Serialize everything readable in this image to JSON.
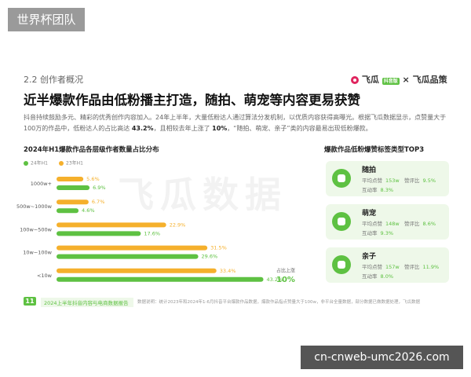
{
  "watermark": "世界杯团队",
  "section": "2.2 创作者概况",
  "logo": {
    "brand": "飞瓜",
    "badge": "抖音版",
    "partner": "× 飞瓜品策"
  },
  "title": "近半爆款作品由低粉播主打造，随拍、萌宠等内容更易获赞",
  "paragraph": [
    "抖音持续鼓励多元、精彩的优秀创作内容加入。24年上半年，大量低粉达人通过算法分发机制，以优质内容获得高曝光。根据飞瓜数据显示，点赞量大于100万的作品中，低粉达人的占比高达 ",
    "43.2%",
    "，且相较去年上涨了 ",
    "10%",
    "，“随拍、萌宠、亲子”类的内容最易出现低粉爆款。"
  ],
  "bg_watermark": "飞瓜数据",
  "chart_data": {
    "type": "bar",
    "orientation": "horizontal",
    "title": "2024年H1爆款作品各层级作者数量占比分布",
    "categories": [
      "1000w+",
      "500w~1000w",
      "100w~500w",
      "10w~100w",
      "<10w"
    ],
    "series": [
      {
        "name": "24年H1",
        "color": "#5ec142",
        "values": [
          6.9,
          4.6,
          17.6,
          29.6,
          43.2
        ],
        "value_labels": [
          "6.9%",
          "4.6%",
          "17.6%",
          "29.6%",
          "43.2%"
        ]
      },
      {
        "name": "23年H1",
        "color": "#f5b02c",
        "values": [
          5.6,
          6.7,
          22.9,
          31.5,
          33.4
        ],
        "value_labels": [
          "5.6%",
          "6.7%",
          "22.9%",
          "31.5%",
          "33.4%"
        ]
      }
    ],
    "annotation": {
      "text": "占比上涨",
      "value": "10%"
    }
  },
  "top3": {
    "title": "爆款作品低粉爆赞标签类型TOP3",
    "cards": [
      {
        "label": "随拍",
        "metrics": [
          {
            "name": "平均点赞",
            "value": "153w"
          },
          {
            "name": "赞评比",
            "value": "9.5%"
          },
          {
            "name": "互动率",
            "value": "8.3%"
          }
        ]
      },
      {
        "label": "萌宠",
        "metrics": [
          {
            "name": "平均点赞",
            "value": "148w"
          },
          {
            "name": "赞评比",
            "value": "8.6%"
          },
          {
            "name": "互动率",
            "value": "9.3%"
          }
        ]
      },
      {
        "label": "亲子",
        "metrics": [
          {
            "name": "平均点赞",
            "value": "157w"
          },
          {
            "name": "赞评比",
            "value": "11.9%"
          },
          {
            "name": "互动率",
            "value": "8.0%"
          }
        ]
      }
    ]
  },
  "footer": {
    "page": "11",
    "report": "2024上半年抖音内容与电商数据报告",
    "note": "数据说明：统计2023年和2024年1-6月抖音平台爆款作品数据，爆款作品指点赞量大于100w，非平台全量数据，部分数据已做数据处理，飞瓜数据"
  },
  "site_watermark": "cn-cnweb-umc2026.com"
}
